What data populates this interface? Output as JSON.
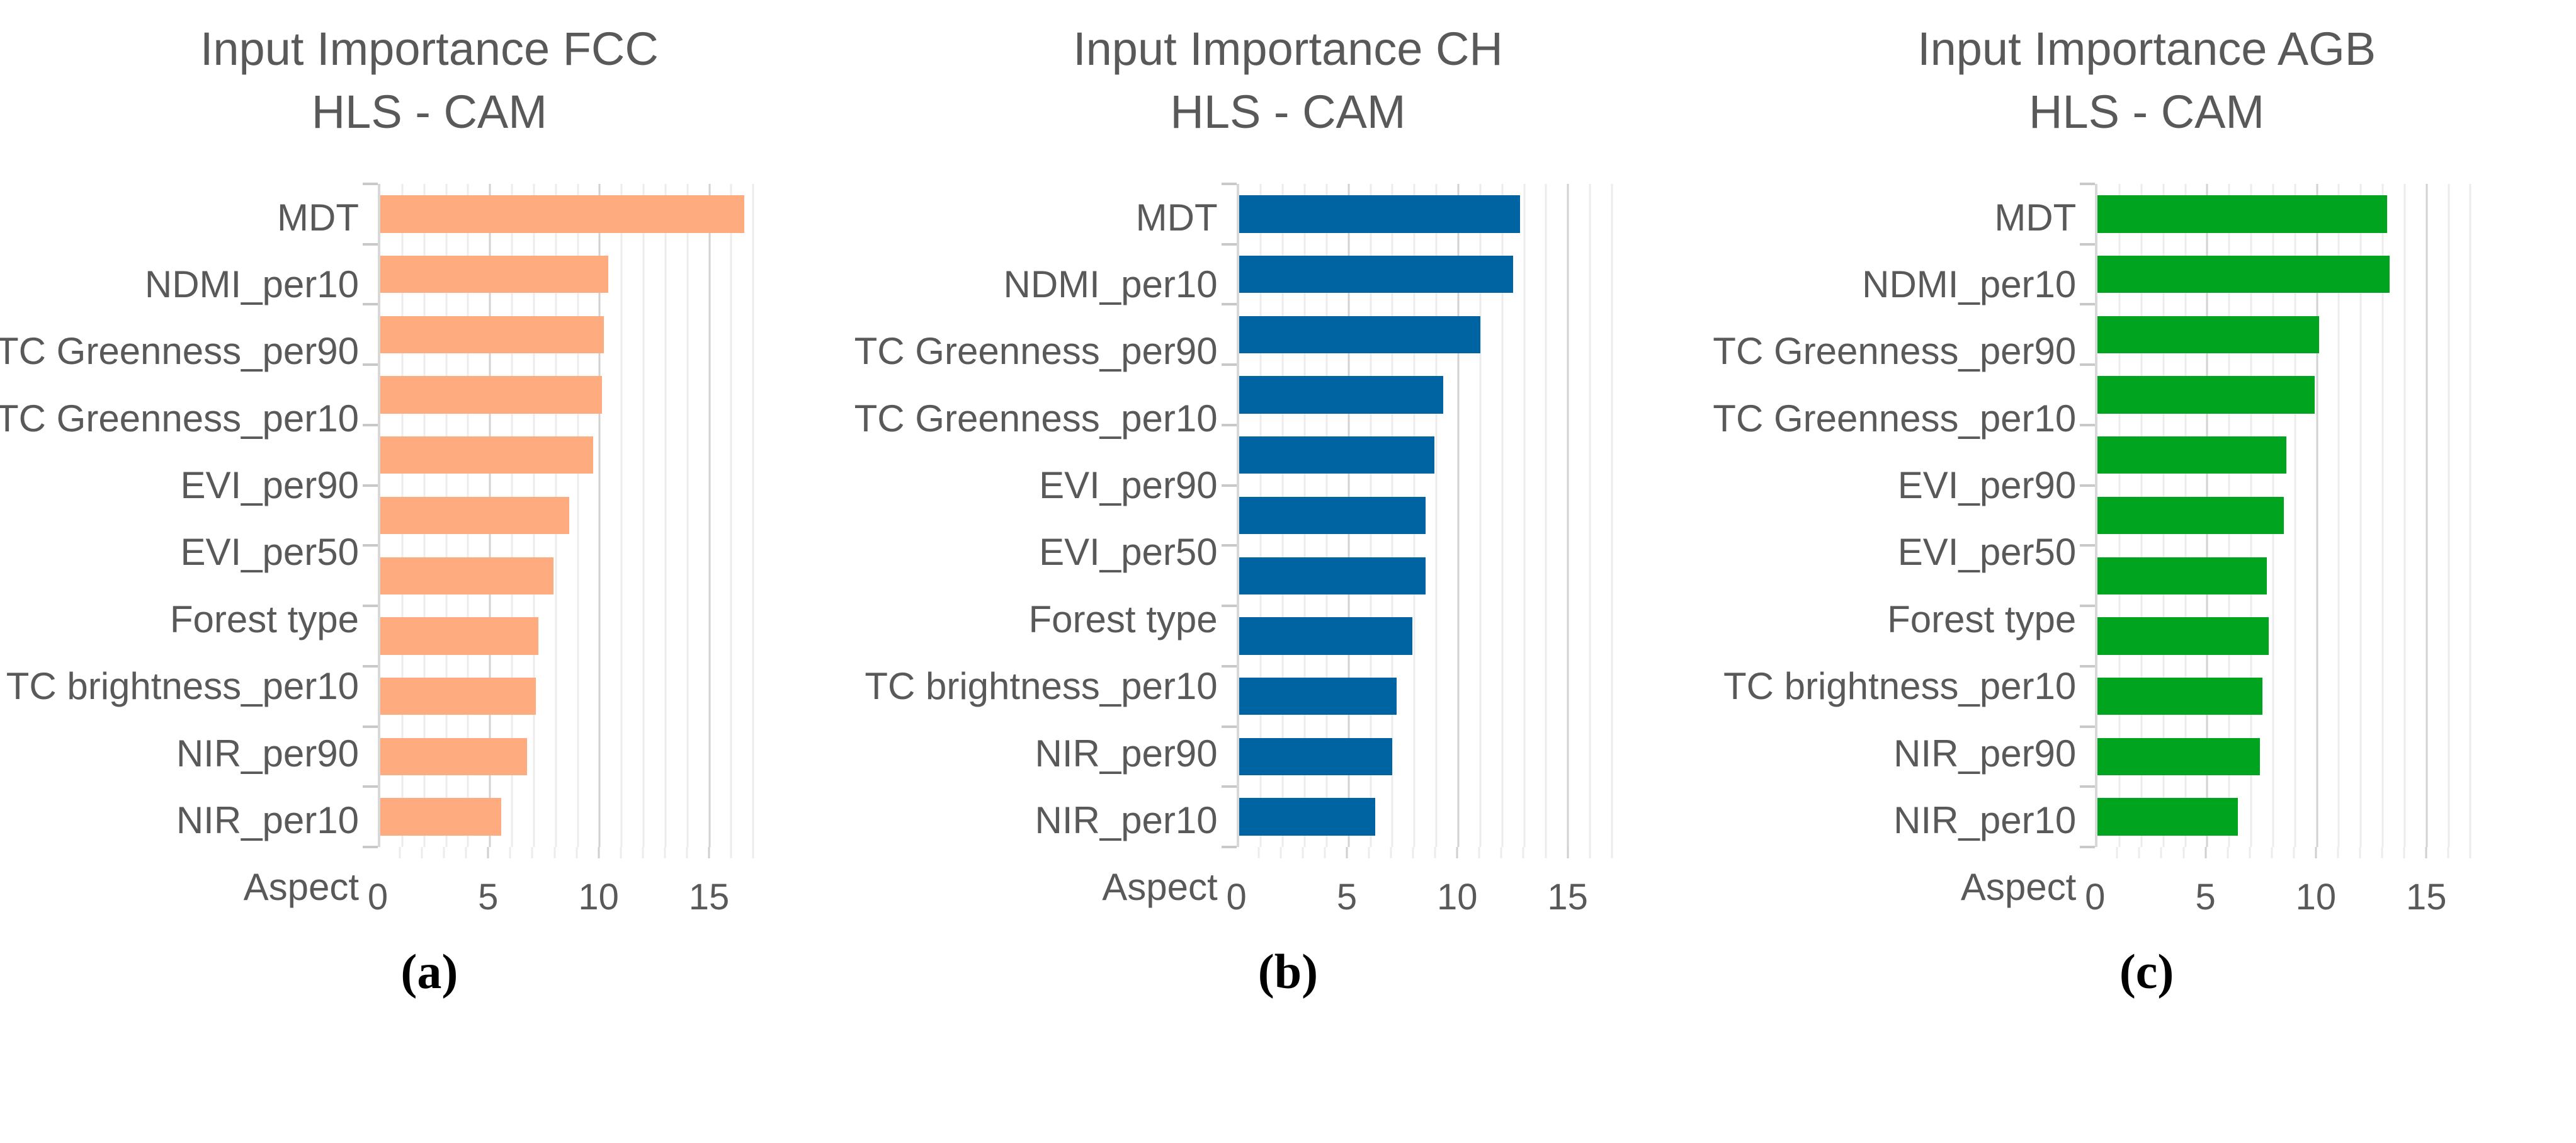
{
  "chart_data": [
    {
      "type": "bar",
      "orientation": "horizontal",
      "title": "Input Importance FCC",
      "subtitle": "HLS - CAM",
      "caption": "(a)",
      "color": "#FFAB80",
      "categories": [
        "MDT",
        "NDMI_per10",
        "TC Greenness_per90",
        "TC Greenness_per10",
        "EVI_per90",
        "EVI_per50",
        "Forest type",
        "TC brightness_per10",
        "NIR_per90",
        "NIR_per10",
        "Aspect"
      ],
      "values": [
        16.6,
        10.4,
        10.2,
        10.1,
        9.7,
        8.6,
        7.9,
        7.2,
        7.1,
        6.7,
        5.5
      ],
      "xlabel": "",
      "ylabel": "",
      "xticks": [
        0,
        5,
        10,
        15
      ],
      "xlim": [
        0,
        17.5
      ],
      "grid": "vertical, minor every 1, major every 5",
      "legend": "none"
    },
    {
      "type": "bar",
      "orientation": "horizontal",
      "title": "Input Importance CH",
      "subtitle": "HLS - CAM",
      "caption": "(b)",
      "color": "#0063A2",
      "categories": [
        "MDT",
        "NDMI_per10",
        "TC Greenness_per90",
        "TC Greenness_per10",
        "EVI_per90",
        "EVI_per50",
        "Forest type",
        "TC brightness_per10",
        "NIR_per90",
        "NIR_per10",
        "Aspect"
      ],
      "values": [
        12.8,
        12.5,
        11.0,
        9.3,
        8.9,
        8.5,
        8.5,
        7.9,
        7.2,
        7.0,
        6.2
      ],
      "xlabel": "",
      "ylabel": "",
      "xticks": [
        0,
        5,
        10,
        15
      ],
      "xlim": [
        0,
        17.5
      ],
      "grid": "vertical, minor every 1, major every 5",
      "legend": "none"
    },
    {
      "type": "bar",
      "orientation": "horizontal",
      "title": "Input Importance AGB",
      "subtitle": "HLS - CAM",
      "caption": "(c)",
      "color": "#00A41E",
      "categories": [
        "MDT",
        "NDMI_per10",
        "TC Greenness_per90",
        "TC Greenness_per10",
        "EVI_per90",
        "EVI_per50",
        "Forest type",
        "TC brightness_per10",
        "NIR_per90",
        "NIR_per10",
        "Aspect"
      ],
      "values": [
        13.2,
        13.3,
        10.1,
        9.9,
        8.6,
        8.5,
        7.7,
        7.8,
        7.5,
        7.4,
        6.4
      ],
      "xlabel": "",
      "ylabel": "",
      "xticks": [
        0,
        5,
        10,
        15
      ],
      "xlim": [
        0,
        17.5
      ],
      "grid": "vertical, minor every 1, major every 5",
      "legend": "none"
    }
  ],
  "style": {
    "text_color": "#595959",
    "minor_grid_color": "#ECECEC",
    "major_grid_color": "#D2D2D2",
    "axis_color": "#D8D8D8"
  }
}
